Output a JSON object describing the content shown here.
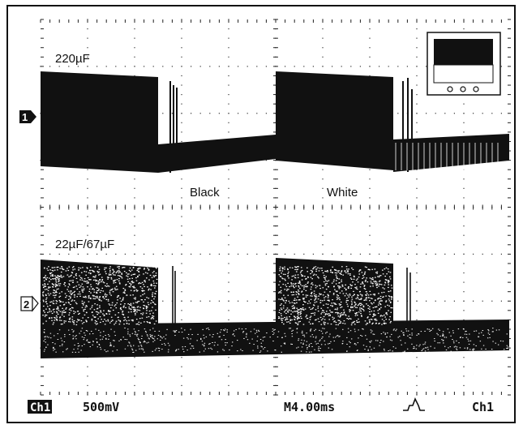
{
  "traces": {
    "top": {
      "label": "220µF",
      "marker": "1",
      "annotations": [
        "Black",
        "White"
      ]
    },
    "bottom": {
      "label": "22µF/67µF",
      "marker": "2"
    }
  },
  "status_bar": {
    "channel": "Ch1",
    "scale": "500mV",
    "timebase": "M4.00ms",
    "trigger_icon": "trigger-edge-icon",
    "trigger_source": "Ch1"
  },
  "inset_icon": "display-mode-icon",
  "colors": {
    "trace": "#111111",
    "background": "#ffffff",
    "status_bg": "#ffffff"
  }
}
